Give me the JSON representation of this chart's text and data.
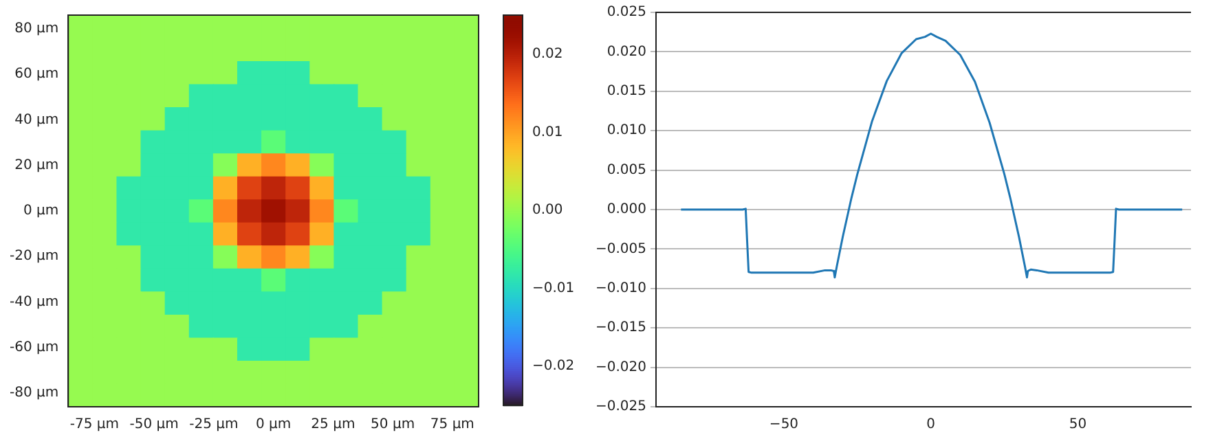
{
  "chart_data": [
    {
      "type": "heatmap",
      "cells": [
        [
          0,
          0,
          0,
          0,
          0,
          0,
          0,
          0,
          0,
          0,
          0,
          0,
          0,
          0,
          0,
          0,
          0
        ],
        [
          0,
          0,
          0,
          0,
          0,
          0,
          0,
          0,
          0,
          0,
          0,
          0,
          0,
          0,
          0,
          0,
          0
        ],
        [
          0,
          0,
          0,
          0,
          0,
          0,
          0,
          -0.008,
          -0.008,
          -0.008,
          0,
          0,
          0,
          0,
          0,
          0,
          0
        ],
        [
          0,
          0,
          0,
          0,
          0,
          -0.008,
          -0.008,
          -0.008,
          -0.008,
          -0.008,
          -0.008,
          -0.008,
          0,
          0,
          0,
          0,
          0
        ],
        [
          0,
          0,
          0,
          0,
          -0.008,
          -0.008,
          -0.008,
          -0.008,
          -0.008,
          -0.008,
          -0.008,
          -0.008,
          -0.008,
          0,
          0,
          0,
          0
        ],
        [
          0,
          0,
          0,
          -0.008,
          -0.008,
          -0.008,
          -0.008,
          -0.008,
          -0.004,
          -0.008,
          -0.008,
          -0.008,
          -0.008,
          -0.008,
          0,
          0,
          0
        ],
        [
          0,
          0,
          0,
          -0.008,
          -0.008,
          -0.008,
          -0.001,
          0.009,
          0.012,
          0.009,
          -0.001,
          -0.008,
          -0.008,
          -0.008,
          0,
          0,
          0
        ],
        [
          0,
          0,
          -0.008,
          -0.008,
          -0.008,
          -0.008,
          0.009,
          0.017,
          0.0195,
          0.017,
          0.009,
          -0.008,
          -0.008,
          -0.008,
          -0.008,
          0,
          0
        ],
        [
          0,
          0,
          -0.008,
          -0.008,
          -0.008,
          -0.004,
          0.012,
          0.0195,
          0.022,
          0.0195,
          0.012,
          -0.004,
          -0.008,
          -0.008,
          -0.008,
          0,
          0
        ],
        [
          0,
          0,
          -0.008,
          -0.008,
          -0.008,
          -0.008,
          0.009,
          0.017,
          0.0195,
          0.017,
          0.009,
          -0.008,
          -0.008,
          -0.008,
          -0.008,
          0,
          0
        ],
        [
          0,
          0,
          0,
          -0.008,
          -0.008,
          -0.008,
          -0.001,
          0.009,
          0.012,
          0.009,
          -0.001,
          -0.008,
          -0.008,
          -0.008,
          0,
          0,
          0
        ],
        [
          0,
          0,
          0,
          -0.008,
          -0.008,
          -0.008,
          -0.008,
          -0.008,
          -0.004,
          -0.008,
          -0.008,
          -0.008,
          -0.008,
          -0.008,
          0,
          0,
          0
        ],
        [
          0,
          0,
          0,
          0,
          -0.008,
          -0.008,
          -0.008,
          -0.008,
          -0.008,
          -0.008,
          -0.008,
          -0.008,
          -0.008,
          0,
          0,
          0,
          0
        ],
        [
          0,
          0,
          0,
          0,
          0,
          -0.008,
          -0.008,
          -0.008,
          -0.008,
          -0.008,
          -0.008,
          -0.008,
          0,
          0,
          0,
          0,
          0
        ],
        [
          0,
          0,
          0,
          0,
          0,
          0,
          0,
          -0.008,
          -0.008,
          -0.008,
          0,
          0,
          0,
          0,
          0,
          0,
          0
        ],
        [
          0,
          0,
          0,
          0,
          0,
          0,
          0,
          0,
          0,
          0,
          0,
          0,
          0,
          0,
          0,
          0,
          0
        ],
        [
          0,
          0,
          0,
          0,
          0,
          0,
          0,
          0,
          0,
          0,
          0,
          0,
          0,
          0,
          0,
          0,
          0
        ]
      ],
      "xlim": [
        -86,
        86
      ],
      "xticks": [
        {
          "value": -75,
          "label": "-75 µm"
        },
        {
          "value": -50,
          "label": "-50 µm"
        },
        {
          "value": -25,
          "label": "-25 µm"
        },
        {
          "value": 0,
          "label": "0 µm"
        },
        {
          "value": 25,
          "label": "25 µm"
        },
        {
          "value": 50,
          "label": "50 µm"
        },
        {
          "value": 75,
          "label": "75 µm"
        }
      ],
      "ylim": [
        -86,
        86
      ],
      "yticks": [
        {
          "value": 80,
          "label": "80 µm"
        },
        {
          "value": 60,
          "label": "60 µm"
        },
        {
          "value": 40,
          "label": "40 µm"
        },
        {
          "value": 20,
          "label": "20 µm"
        },
        {
          "value": 0,
          "label": "0 µm"
        },
        {
          "value": -20,
          "label": "-20 µm"
        },
        {
          "value": -40,
          "label": "-40 µm"
        },
        {
          "value": -60,
          "label": "-60 µm"
        },
        {
          "value": -80,
          "label": "-80 µm"
        }
      ],
      "clim": [
        -0.025,
        0.025
      ],
      "cticks": [
        {
          "value": 0.02,
          "label": "0.02"
        },
        {
          "value": 0.01,
          "label": "0.01"
        },
        {
          "value": 0,
          "label": "0.00"
        },
        {
          "value": -0.01,
          "label": "−0.01"
        },
        {
          "value": -0.02,
          "label": "−0.02"
        }
      ]
    },
    {
      "type": "line",
      "x": [
        -85,
        -70,
        -64,
        -63,
        -62.5,
        -62,
        -61,
        -50,
        -40,
        -36,
        -34,
        -33,
        -32.7,
        -32,
        -30,
        -27,
        -25,
        -20,
        -15,
        -10,
        -5,
        -2,
        0,
        2,
        5,
        10,
        15,
        20,
        25,
        27,
        30,
        32,
        32.7,
        33,
        34,
        36,
        40,
        50,
        61,
        62,
        62.5,
        63,
        64,
        70,
        85.5
      ],
      "values": [
        0,
        0,
        0,
        0.0001,
        -0.004,
        -0.0079,
        -0.008,
        -0.008,
        -0.008,
        -0.0077,
        -0.0077,
        -0.0078,
        -0.0086,
        -0.0072,
        -0.0035,
        0.0015,
        0.0045,
        0.0112,
        0.0163,
        0.0198,
        0.0216,
        0.0219,
        0.0223,
        0.0219,
        0.0214,
        0.0196,
        0.0162,
        0.011,
        0.0045,
        0.0015,
        -0.0035,
        -0.0072,
        -0.0086,
        -0.0078,
        -0.0076,
        -0.0077,
        -0.008,
        -0.008,
        -0.008,
        -0.0079,
        -0.004,
        0.0001,
        0,
        0,
        0
      ],
      "color": "#1f77b4",
      "xlim": [
        -93.5,
        88.5
      ],
      "xticks": [
        {
          "value": -50,
          "label": "−50"
        },
        0,
        50
      ],
      "ylim": [
        -0.025,
        0.025
      ],
      "yticks": [
        {
          "value": 0.025,
          "label": "0.025"
        },
        {
          "value": 0.02,
          "label": "0.020"
        },
        {
          "value": 0.015,
          "label": "0.015"
        },
        {
          "value": 0.01,
          "label": "0.010"
        },
        {
          "value": 0.005,
          "label": "0.005"
        },
        {
          "value": 0,
          "label": "0.000"
        },
        {
          "value": -0.005,
          "label": "−0.005"
        },
        {
          "value": -0.01,
          "label": "−0.010"
        },
        {
          "value": -0.015,
          "label": "−0.015"
        },
        {
          "value": -0.02,
          "label": "−0.020"
        },
        {
          "value": -0.025,
          "label": "−0.025"
        }
      ],
      "grid": "y"
    }
  ]
}
